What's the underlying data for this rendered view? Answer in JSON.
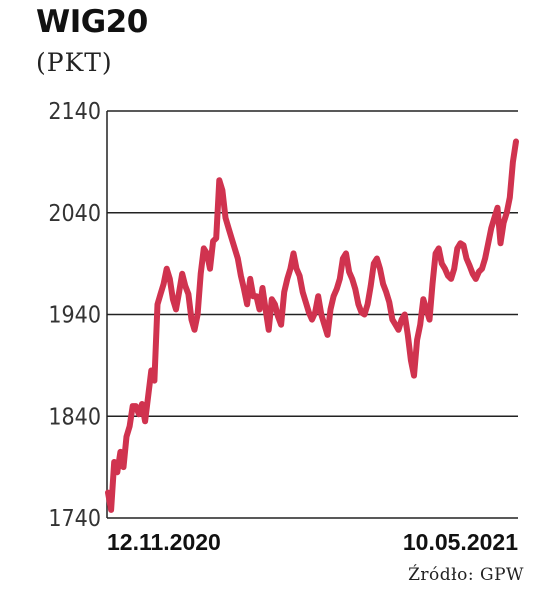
{
  "chart_data": {
    "type": "line",
    "title": "WIG20",
    "subtitle": "(PKT)",
    "ylim": [
      1740,
      2140
    ],
    "y_ticks": [
      2140,
      2040,
      1940,
      1840,
      1740
    ],
    "x_ticks": [
      "12.11.2020",
      "10.05.2021"
    ],
    "source": "Źródło: GPW",
    "line_color": "#d0334f",
    "grid": true,
    "series": [
      {
        "values": [
          1765,
          1748,
          1795,
          1785,
          1805,
          1790,
          1820,
          1830,
          1850,
          1850,
          1842,
          1852,
          1835,
          1860,
          1885,
          1875,
          1950,
          1960,
          1970,
          1985,
          1975,
          1955,
          1945,
          1962,
          1980,
          1968,
          1960,
          1935,
          1925,
          1940,
          1980,
          2005,
          2000,
          1985,
          2012,
          2015,
          2072,
          2062,
          2035,
          2025,
          2015,
          2005,
          1995,
          1978,
          1965,
          1950,
          1975,
          1958,
          1958,
          1945,
          1966,
          1945,
          1925,
          1955,
          1950,
          1938,
          1930,
          1962,
          1975,
          1985,
          2000,
          1985,
          1978,
          1962,
          1952,
          1942,
          1935,
          1942,
          1958,
          1940,
          1930,
          1920,
          1945,
          1958,
          1965,
          1975,
          1995,
          2000,
          1982,
          1975,
          1965,
          1950,
          1942,
          1940,
          1950,
          1968,
          1990,
          1995,
          1985,
          1970,
          1962,
          1952,
          1935,
          1930,
          1925,
          1935,
          1940,
          1920,
          1895,
          1880,
          1915,
          1930,
          1955,
          1945,
          1935,
          1970,
          2000,
          2005,
          1990,
          1985,
          1978,
          1975,
          1985,
          2005,
          2010,
          2008,
          1995,
          1988,
          1980,
          1975,
          1982,
          1985,
          1995,
          2010,
          2025,
          2035,
          2045,
          2010,
          2030,
          2040,
          2055,
          2090,
          2110
        ]
      }
    ]
  },
  "texts": {
    "title": "WIG20",
    "subtitle": "(PKT)",
    "source": "Źródło: GPW"
  }
}
